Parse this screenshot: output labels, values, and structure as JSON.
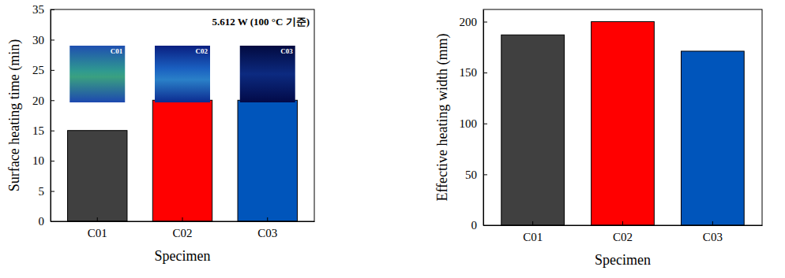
{
  "chart_data": [
    {
      "type": "bar",
      "ylabel": "Surface heating time (min)",
      "xlabel": "Specimen",
      "annotation": "5.612 W (100 °C 기준)",
      "inset_labels": [
        "C01",
        "C02",
        "C03"
      ],
      "categories": [
        "C01",
        "C02",
        "C03"
      ],
      "values": [
        15,
        20,
        20
      ],
      "colors": [
        "#404040",
        "#ff0000",
        "#0055bb"
      ],
      "ylim": [
        0,
        35
      ],
      "yticks": [
        0,
        5,
        10,
        15,
        20,
        25,
        30,
        35
      ]
    },
    {
      "type": "bar",
      "ylabel": "Effective heating width (mm)",
      "xlabel": "Specimen",
      "categories": [
        "C01",
        "C02",
        "C03"
      ],
      "values": [
        187,
        200,
        171
      ],
      "colors": [
        "#404040",
        "#ff0000",
        "#0055bb"
      ],
      "ylim": [
        0,
        212
      ],
      "yticks": [
        0,
        50,
        100,
        150,
        200
      ]
    }
  ]
}
